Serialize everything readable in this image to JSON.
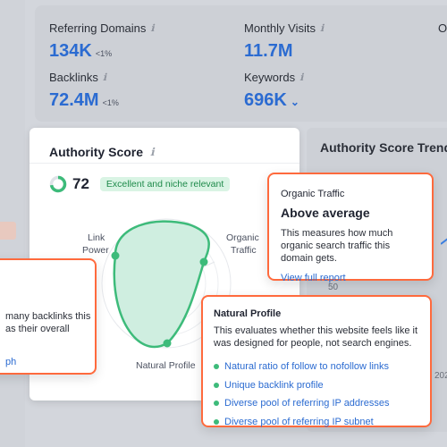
{
  "metrics": {
    "referring_domains": {
      "label": "Referring Domains",
      "value": "134K",
      "change": "<1%"
    },
    "backlinks": {
      "label": "Backlinks",
      "value": "72.4M",
      "change": "<1%"
    },
    "monthly_visits": {
      "label": "Monthly Visits",
      "value": "11.7M"
    },
    "keywords": {
      "label": "Keywords",
      "value": "696K"
    },
    "cut_label": "O"
  },
  "authority_card": {
    "title": "Authority Score",
    "score": "72",
    "score_fraction": 0.72,
    "badge": "Excellent and niche relevant",
    "radar_labels": {
      "link_power_1": "Link",
      "link_power_2": "Power",
      "organic_1": "Organic",
      "organic_2": "Traffic",
      "natural": "Natural Profile"
    }
  },
  "trend_card": {
    "title": "Authority Score Trend",
    "ticks": [
      "50",
      "202"
    ]
  },
  "popover_left": {
    "line1": "many backlinks this",
    "line2": "as their overall",
    "link": "ph"
  },
  "popover_organic": {
    "subtitle": "Organic Traffic",
    "heading": "Above average",
    "description": "This measures how much organic search traffic this domain gets.",
    "link": "View full report"
  },
  "popover_natural": {
    "subtitle": "Natural Profile",
    "description": "This evaluates whether this website feels like it was designed for people, not search engines.",
    "items": [
      "Natural ratio of follow to nofollow links",
      "Unique backlink profile",
      "Diverse pool of referring IP addresses",
      "Diverse pool of referring IP subnet"
    ]
  },
  "icons": {
    "info": "ℹ",
    "chevron": "⌄"
  },
  "colors": {
    "accent": "#2b6bd1",
    "highlight": "#ff6a3d",
    "green": "#3dbb7a"
  }
}
